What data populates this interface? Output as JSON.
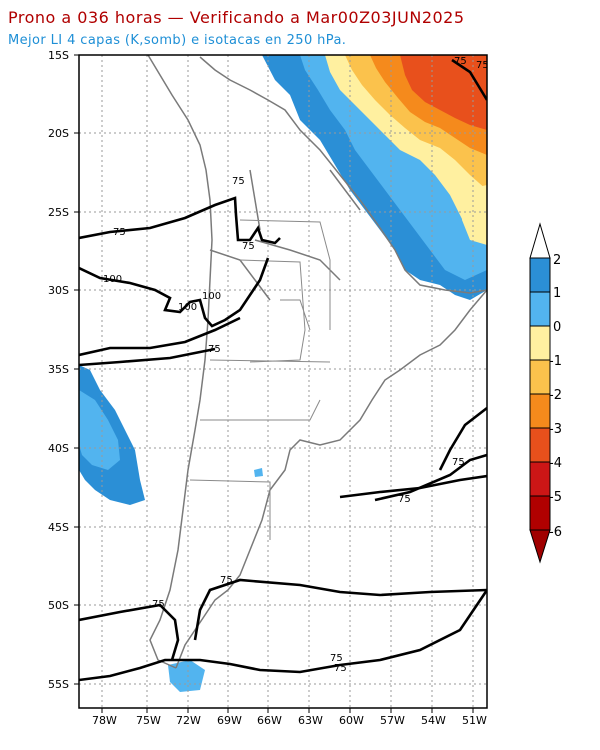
{
  "header": {
    "title": "Prono a 036 horas — Verificando a Mar00Z03JUN2025",
    "subtitle": "Mejor LI 4 capas (K,somb) e isotacas en 250 hPa."
  },
  "map": {
    "lat_labels": [
      "15S",
      "20S",
      "25S",
      "30S",
      "35S",
      "40S",
      "45S",
      "50S",
      "55S"
    ],
    "lon_labels": [
      "78W",
      "75W",
      "72W",
      "69W",
      "66W",
      "63W",
      "60W",
      "57W",
      "54W",
      "51W"
    ],
    "isotach_labels": [
      "75",
      "75",
      "75",
      "100",
      "100",
      "100",
      "75",
      "75",
      "75",
      "75",
      "75",
      "75",
      "75",
      "75",
      "75"
    ]
  },
  "colorbar": {
    "labels": [
      "2",
      "1",
      "0",
      "-1",
      "-2",
      "-3",
      "-4",
      "-5",
      "-6"
    ],
    "colors": [
      "#ffffff",
      "#2b8fd6",
      "#52b4ef",
      "#fff0a0",
      "#fbc24c",
      "#f58a1c",
      "#e8501c",
      "#cc1616",
      "#b00000",
      "#a00000"
    ]
  }
}
